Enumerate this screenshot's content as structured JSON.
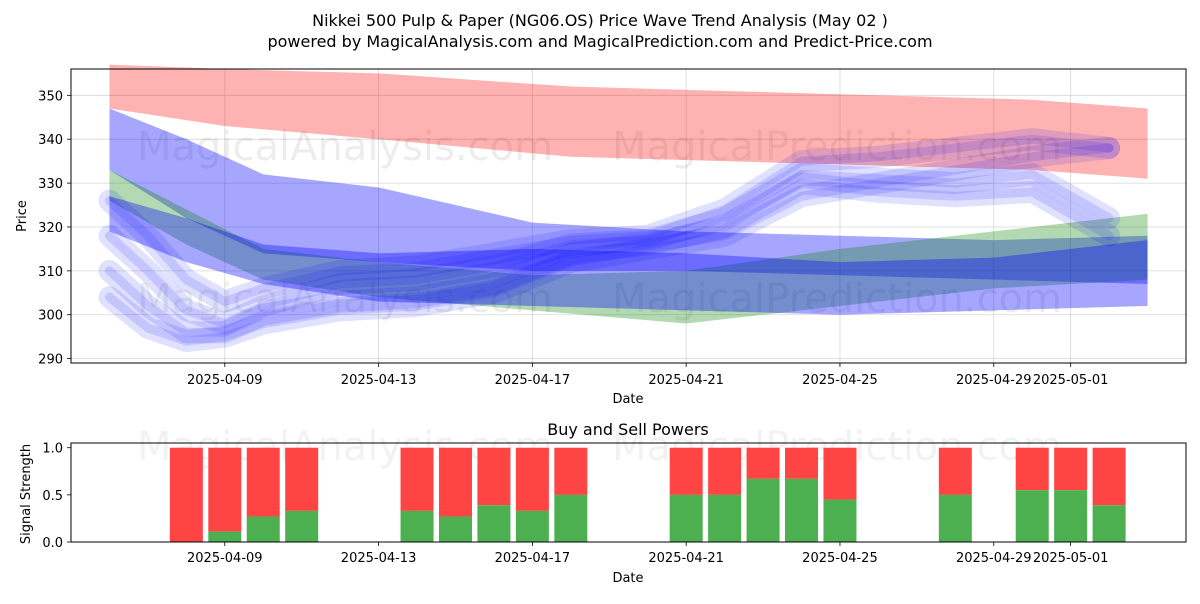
{
  "title_line1": "Nikkei 500 Pulp & Paper (NG06.OS) Price Wave Trend Analysis (May 02 )",
  "title_line2": "powered by MagicalAnalysis.com and MagicalPrediction.com and Predict-Price.com",
  "watermarks": [
    "MagicalAnalysis.com",
    "MagicalPrediction.com"
  ],
  "colors": {
    "red_band": "#ff0000",
    "green_band": "#008000",
    "blue_band": "#0000ff",
    "buy": "#4caf50",
    "sell": "#ff4444"
  },
  "chart_data": [
    {
      "type": "line",
      "title": "",
      "xlabel": "Date",
      "ylabel": "Price",
      "xlim": [
        "2025-04-05",
        "2025-05-04"
      ],
      "ylim": [
        289,
        356
      ],
      "yticks": [
        290,
        300,
        310,
        320,
        330,
        340,
        350
      ],
      "xticks": [
        "2025-04-09",
        "2025-04-13",
        "2025-04-17",
        "2025-04-21",
        "2025-04-25",
        "2025-04-29",
        "2025-05-01"
      ],
      "series": [
        {
          "name": "red-upper-band",
          "color": "red",
          "x": [
            "2025-04-06",
            "2025-04-09",
            "2025-04-13",
            "2025-04-18",
            "2025-04-22",
            "2025-04-26",
            "2025-04-30",
            "2025-05-03"
          ],
          "upper": [
            357,
            356,
            355,
            352,
            351,
            350,
            349,
            347
          ],
          "lower": [
            347,
            343,
            340,
            336,
            335,
            334,
            333,
            331
          ]
        },
        {
          "name": "blue-upper-trend",
          "color": "blue",
          "x": [
            "2025-04-06",
            "2025-04-08",
            "2025-04-10",
            "2025-04-13",
            "2025-04-17",
            "2025-04-21",
            "2025-04-25",
            "2025-04-29",
            "2025-05-03"
          ],
          "upper": [
            347,
            340,
            332,
            329,
            321,
            319,
            318,
            317,
            318
          ],
          "lower": [
            333,
            322,
            314,
            312,
            310,
            310,
            309,
            308,
            307
          ]
        },
        {
          "name": "green-trend",
          "color": "green",
          "x": [
            "2025-04-06",
            "2025-04-08",
            "2025-04-10",
            "2025-04-13",
            "2025-04-17",
            "2025-04-21",
            "2025-04-25",
            "2025-04-29",
            "2025-05-03"
          ],
          "upper": [
            333,
            324,
            315,
            312,
            309,
            310,
            315,
            319,
            323
          ],
          "lower": [
            326,
            316,
            308,
            304,
            301,
            298,
            302,
            306,
            308
          ]
        },
        {
          "name": "blue-lower-trend",
          "color": "blue",
          "x": [
            "2025-04-06",
            "2025-04-08",
            "2025-04-10",
            "2025-04-13",
            "2025-04-17",
            "2025-04-21",
            "2025-04-25",
            "2025-04-29",
            "2025-05-03"
          ],
          "upper": [
            327,
            322,
            316,
            314,
            315,
            314,
            312,
            313,
            317
          ],
          "lower": [
            319,
            312,
            307,
            303,
            302,
            301,
            300,
            301,
            302
          ]
        }
      ],
      "wave_paths": [
        {
          "x": [
            "2025-04-06",
            "2025-04-07",
            "2025-04-08",
            "2025-04-09",
            "2025-04-10",
            "2025-04-12",
            "2025-04-14",
            "2025-04-16",
            "2025-04-18",
            "2025-04-20",
            "2025-04-22",
            "2025-04-24",
            "2025-04-26",
            "2025-04-28",
            "2025-04-30",
            "2025-05-02"
          ],
          "y": [
            310,
            302,
            296,
            296,
            300,
            303,
            304,
            307,
            314,
            316,
            320,
            330,
            328,
            327,
            328,
            318
          ]
        },
        {
          "x": [
            "2025-04-06",
            "2025-04-07",
            "2025-04-08",
            "2025-04-09",
            "2025-04-10",
            "2025-04-12",
            "2025-04-14",
            "2025-04-16",
            "2025-04-18",
            "2025-04-20",
            "2025-04-22",
            "2025-04-24",
            "2025-04-26",
            "2025-04-28",
            "2025-04-30",
            "2025-05-02"
          ],
          "y": [
            318,
            310,
            301,
            298,
            302,
            307,
            308,
            311,
            316,
            317,
            322,
            332,
            331,
            330,
            332,
            322
          ]
        },
        {
          "x": [
            "2025-04-06",
            "2025-04-07",
            "2025-04-08",
            "2025-04-09",
            "2025-04-10",
            "2025-04-12",
            "2025-04-14",
            "2025-04-16",
            "2025-04-18",
            "2025-04-20",
            "2025-04-22",
            "2025-04-24",
            "2025-04-26",
            "2025-04-28",
            "2025-04-30",
            "2025-05-02"
          ],
          "y": [
            326,
            318,
            308,
            303,
            306,
            310,
            311,
            314,
            317,
            318,
            324,
            335,
            336,
            338,
            340,
            338
          ]
        },
        {
          "x": [
            "2025-04-06",
            "2025-04-07",
            "2025-04-08",
            "2025-04-09",
            "2025-04-10",
            "2025-04-12",
            "2025-04-14",
            "2025-04-16",
            "2025-04-18",
            "2025-04-20",
            "2025-04-22",
            "2025-04-24",
            "2025-04-26",
            "2025-04-28",
            "2025-04-30",
            "2025-05-02"
          ],
          "y": [
            304,
            297,
            294,
            295,
            298,
            301,
            302,
            305,
            312,
            315,
            318,
            327,
            330,
            333,
            336,
            338
          ]
        }
      ]
    },
    {
      "type": "bar",
      "title": "Buy and Sell Powers",
      "xlabel": "Date",
      "ylabel": "Signal Strength",
      "ylim": [
        0,
        1.05
      ],
      "yticks": [
        "0.0",
        "0.5",
        "1.0"
      ],
      "xticks": [
        "2025-04-09",
        "2025-04-13",
        "2025-04-17",
        "2025-04-21",
        "2025-04-25",
        "2025-04-29",
        "2025-05-01"
      ],
      "categories": [
        "2025-04-08",
        "2025-04-09",
        "2025-04-10",
        "2025-04-11",
        "2025-04-14",
        "2025-04-15",
        "2025-04-16",
        "2025-04-17",
        "2025-04-18",
        "2025-04-21",
        "2025-04-22",
        "2025-04-23",
        "2025-04-24",
        "2025-04-25",
        "2025-04-28",
        "2025-04-30",
        "2025-05-01",
        "2025-05-02"
      ],
      "series": [
        {
          "name": "Buy",
          "color": "green",
          "values": [
            0.0,
            0.11,
            0.27,
            0.33,
            0.33,
            0.27,
            0.39,
            0.33,
            0.5,
            0.5,
            0.5,
            0.67,
            0.67,
            0.45,
            0.5,
            0.55,
            0.55,
            0.39
          ]
        },
        {
          "name": "Sell",
          "color": "red",
          "values": [
            1.0,
            0.89,
            0.73,
            0.67,
            0.67,
            0.73,
            0.61,
            0.67,
            0.5,
            0.5,
            0.5,
            0.33,
            0.33,
            0.55,
            0.5,
            0.45,
            0.45,
            0.61
          ]
        }
      ]
    }
  ]
}
